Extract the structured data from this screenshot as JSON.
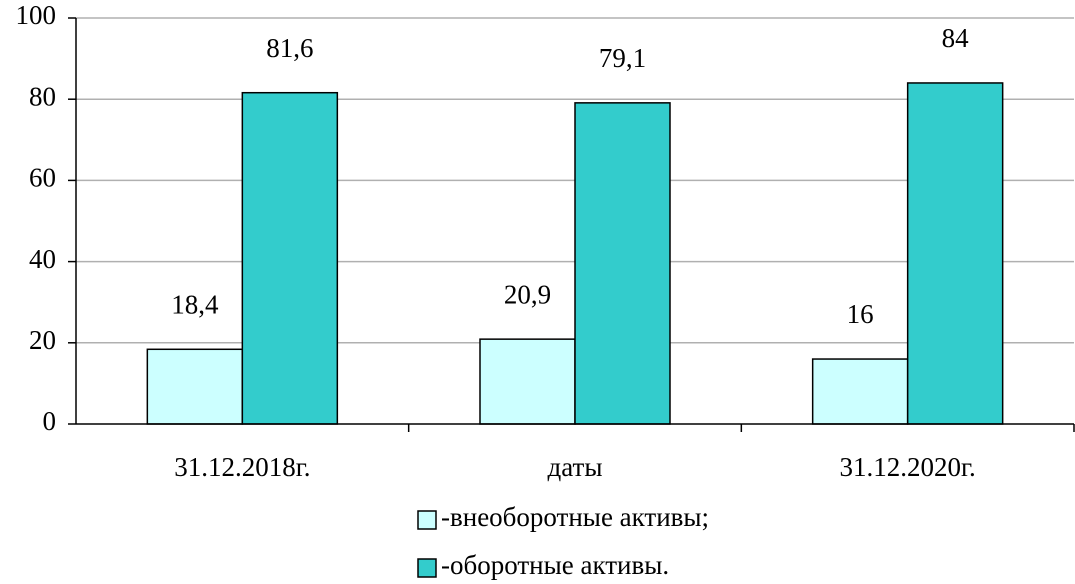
{
  "chart_data": {
    "type": "bar",
    "categories": [
      "31.12.2018г.",
      "даты",
      "31.12.2020г."
    ],
    "series": [
      {
        "name": "-внеоборотные активы;",
        "color": "#ccffff",
        "values": [
          18.4,
          20.9,
          16
        ],
        "value_labels": [
          "18,4",
          "20,9",
          "16"
        ]
      },
      {
        "name": "-оборотные активы.",
        "color": "#33cccc",
        "values": [
          81.6,
          79.1,
          84
        ],
        "value_labels": [
          "81,6",
          "79,1",
          "84"
        ]
      }
    ],
    "ylim": [
      0,
      100
    ],
    "yticks": [
      0,
      20,
      40,
      60,
      80,
      100
    ],
    "grid": true,
    "legend": "bottom"
  }
}
